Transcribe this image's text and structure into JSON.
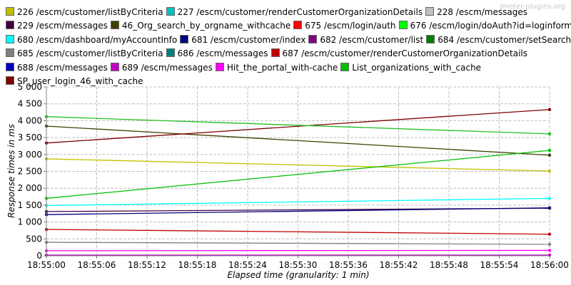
{
  "watermark": "jmeter-plugins.org",
  "chart_data": {
    "type": "line",
    "xlabel": "Elapsed time (granularity: 1 min)",
    "ylabel": "Response times in ms",
    "ylim": [
      0,
      5000
    ],
    "yticks": [
      "0",
      "500",
      "1 000",
      "1 500",
      "2 000",
      "2 500",
      "3 000",
      "3 500",
      "4 000",
      "4 500",
      "5 000"
    ],
    "xticks": [
      "18:55:00",
      "18:55:06",
      "18:55:12",
      "18:55:18",
      "18:55:24",
      "18:55:30",
      "18:55:36",
      "18:55:42",
      "18:55:48",
      "18:55:54",
      "18:56:00"
    ],
    "x": [
      "18:55:00",
      "18:56:00"
    ],
    "grid": true,
    "legend_position": "top",
    "series": [
      {
        "name": "226 /escm/customer/listByCriteria",
        "color": "#c0c000",
        "values": [
          2870,
          2510
        ]
      },
      {
        "name": "227 /escm/customer/renderCustomerOrganizationDetails",
        "color": "#00c0c0",
        "values": [
          null,
          null
        ]
      },
      {
        "name": "228 /escm/messages",
        "color": "#c0c0c0",
        "values": [
          null,
          null
        ]
      },
      {
        "name": "229 /escm/messages",
        "color": "#400040",
        "values": [
          1310,
          1410
        ]
      },
      {
        "name": "46_Org_search_by_orgname_withcache",
        "color": "#404000",
        "values": [
          3840,
          2980
        ]
      },
      {
        "name": "675 /escm/login/auth",
        "color": "#ff0000",
        "values": [
          null,
          null
        ]
      },
      {
        "name": "676 /escm/login/doAuth?id=loginform",
        "color": "#00ff00",
        "values": [
          null,
          null
        ]
      },
      {
        "name": "680 /escm/dashboard/myAccountInfo",
        "color": "#00ffff",
        "values": [
          1490,
          1700
        ]
      },
      {
        "name": "681 /escm/customer/index",
        "color": "#000080",
        "values": [
          1220,
          1420
        ]
      },
      {
        "name": "682 /escm/customer/list",
        "color": "#800080",
        "values": [
          null,
          null
        ]
      },
      {
        "name": "684 /escm/customer/setSearchBy",
        "color": "#008000",
        "values": [
          null,
          null
        ]
      },
      {
        "name": "685 /escm/customer/listByCriteria",
        "color": "#808080",
        "values": [
          400,
          340
        ]
      },
      {
        "name": "686 /escm/messages",
        "color": "#008080",
        "values": [
          null,
          null
        ]
      },
      {
        "name": "687 /escm/customer/renderCustomerOrganizationDetails",
        "color": "#c00000",
        "values": [
          780,
          640
        ]
      },
      {
        "name": "688 /escm/messages",
        "color": "#0000c0",
        "values": [
          null,
          null
        ]
      },
      {
        "name": "689 /escm/messages",
        "color": "#c000c0",
        "values": [
          20,
          20
        ]
      },
      {
        "name": "Hit_the_portal_with-cache",
        "color": "#ff00ff",
        "values": [
          150,
          160
        ]
      },
      {
        "name": "List_organizations_with_cache",
        "color": "#00c000",
        "values": [
          1700,
          3120
        ]
      },
      {
        "name": "SP_user_login_46_with_cache",
        "color": "#800000",
        "values": [
          3340,
          4330
        ]
      },
      {
        "name": "",
        "color": "#20c020",
        "values": [
          4120,
          3610
        ]
      }
    ]
  },
  "legend_rows": [
    [
      0,
      1,
      2
    ],
    [
      3,
      4,
      5,
      6
    ],
    [
      7,
      8,
      9,
      10
    ],
    [
      11,
      12,
      13
    ],
    [
      14,
      15,
      16,
      17
    ],
    [
      18
    ]
  ]
}
